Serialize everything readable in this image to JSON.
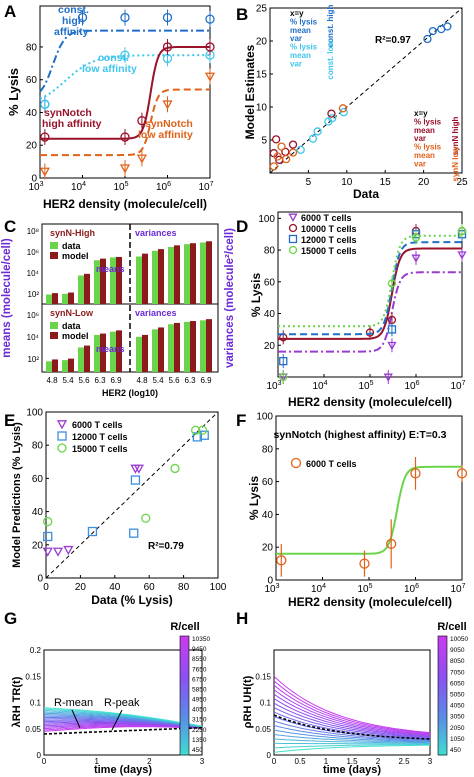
{
  "chart_data": [
    {
      "panel": "A",
      "type": "line",
      "xlabel": "HER2  density (molecule/cell)",
      "ylabel": "% Lysis",
      "xscale": "log",
      "xlim": [
        1000,
        10000000
      ],
      "ylim": [
        0,
        100
      ],
      "xticks": [
        1000,
        10000,
        100000,
        1000000,
        10000000
      ],
      "yticks": [
        0,
        20,
        40,
        60,
        80
      ],
      "series": [
        {
          "name": "const. high affinity",
          "color": "#1f6fc8",
          "dash": "8 3 2 3",
          "curve": {
            "low": 48,
            "high": 90,
            "ec50": 2000,
            "n": 3
          },
          "points": [
            [
              1300,
              45
            ],
            [
              10000,
              98
            ],
            [
              100000,
              98
            ],
            [
              1000000,
              98
            ],
            [
              10000000,
              97
            ]
          ]
        },
        {
          "name": "const. low affinity",
          "color": "#3fc6ec",
          "dash": "2 3",
          "curve": {
            "low": 44,
            "high": 75,
            "ec50": 4000,
            "n": 1.3
          },
          "points": [
            [
              1300,
              45
            ],
            [
              100000,
              75
            ],
            [
              1000000,
              73
            ],
            [
              10000000,
              75
            ]
          ]
        },
        {
          "name": "synNotch high affinity",
          "color": "#98122a",
          "dash": "",
          "curve": {
            "low": 24,
            "high": 80,
            "ec50": 400000,
            "n": 5
          },
          "points": [
            [
              1300,
              25
            ],
            [
              100000,
              25
            ],
            [
              250000,
              35
            ],
            [
              1000000,
              80
            ],
            [
              10000000,
              80
            ]
          ]
        },
        {
          "name": "synNotch low affinity",
          "color": "#e0621a",
          "dash": "7 4",
          "curve": {
            "low": 14,
            "high": 54,
            "ec50": 400000,
            "n": 5
          },
          "points": [
            [
              1300,
              4
            ],
            [
              100000,
              6
            ],
            [
              250000,
              12
            ],
            [
              1000000,
              45
            ],
            [
              10000000,
              62
            ]
          ]
        }
      ],
      "labels": {
        "const_high": [
          "const.",
          "high",
          "affinity"
        ],
        "const_low": [
          "const.",
          "low affinity"
        ],
        "syn_high": [
          "synNotch",
          "high affinity"
        ],
        "syn_low": [
          "synNotch",
          "low affinity"
        ]
      }
    },
    {
      "panel": "B",
      "type": "scatter",
      "xlabel": "Data",
      "ylabel": "Model Estimates",
      "xlim": [
        0,
        25
      ],
      "ylim": [
        0,
        25
      ],
      "xticks": [
        5,
        10,
        15,
        20,
        25
      ],
      "yticks": [
        5,
        10,
        15,
        20,
        25
      ],
      "annotation": "R²=0.97",
      "legend_top": [
        "x=y",
        "% lysis",
        "mean",
        "var",
        "% lysis",
        "mean",
        "var"
      ],
      "legend_top_groups": [
        "const. high",
        "const. low"
      ],
      "legend_bottom": [
        "x=y",
        "% lysis",
        "mean",
        "var",
        "% lysis",
        "mean",
        "var"
      ],
      "legend_bottom_groups": [
        "synN high",
        "synN low"
      ],
      "points": {
        "const_high": [
          [
            20.5,
            20.3
          ],
          [
            21.2,
            21.5
          ],
          [
            22.3,
            21.8
          ],
          [
            23.1,
            22.2
          ]
        ],
        "const_low": [
          [
            4,
            3.5
          ],
          [
            5.6,
            5.2
          ],
          [
            6.2,
            6.3
          ],
          [
            7.6,
            7.8
          ],
          [
            8.1,
            8.3
          ],
          [
            9.6,
            9.2
          ]
        ],
        "synN_high": [
          [
            0.5,
            3
          ],
          [
            1.2,
            2
          ],
          [
            2,
            3.2
          ],
          [
            3,
            4.3
          ],
          [
            0.8,
            5.1
          ],
          [
            8,
            9
          ]
        ],
        "synN_low": [
          [
            0.5,
            1
          ],
          [
            1,
            2.5
          ],
          [
            2.1,
            2.1
          ],
          [
            3,
            3.1
          ],
          [
            1.5,
            4
          ],
          [
            9.5,
            9.8
          ]
        ]
      }
    },
    {
      "panel": "C",
      "type": "bar",
      "xlabel": "HER2 (log10)",
      "categories": [
        "4.8",
        "5.4",
        "5.6",
        "6.3",
        "6.9"
      ],
      "ylabel_left": "means (molecule/cell)",
      "ylabel_right": "variances (molecule²/cell)",
      "tick_labels_top": [
        "10⁸",
        "10⁶",
        "10⁴",
        "10²"
      ],
      "tick_labels_bottom": [
        "10⁶",
        "10⁴",
        "10²"
      ],
      "subpanels": [
        {
          "title": "synN-High",
          "data_label": "data",
          "model_label": "model",
          "means_label": "means",
          "variances_label": "variances",
          "means_data": [
            100,
            120,
            10000,
            400000,
            800000
          ],
          "means_model": [
            140,
            160,
            15000,
            600000,
            900000
          ],
          "var_data": [
            1000000,
            4000000,
            10000000,
            20000000,
            30000000
          ],
          "var_model": [
            2000000,
            6000000,
            15000000,
            25000000,
            40000000
          ]
        },
        {
          "title": "synN-Low",
          "data_label": "data",
          "model_label": "model",
          "means_label": "means",
          "variances_label": "variances",
          "means_data": [
            100,
            130,
            2000,
            30000,
            60000
          ],
          "means_model": [
            150,
            180,
            3000,
            40000,
            80000
          ],
          "var_data": [
            20000,
            100000,
            300000,
            500000,
            700000
          ],
          "var_model": [
            30000,
            150000,
            400000,
            600000,
            900000
          ]
        }
      ]
    },
    {
      "panel": "D",
      "type": "line",
      "xlabel": "HER2 density (molecule/cell)",
      "ylabel": "% Lysis",
      "xscale": "log",
      "xlim": [
        1000,
        10000000
      ],
      "ylim": [
        0,
        100
      ],
      "yticks": [
        20,
        40,
        60,
        80,
        100
      ],
      "series": [
        {
          "name": "6000 T cells",
          "color": "#9a3bd0",
          "dash": "8 3 2 3",
          "marker": "tri",
          "curve": {
            "low": 16,
            "high": 66,
            "ec50": 300000,
            "n": 5
          },
          "points": [
            [
              1300,
              0
            ],
            [
              250000,
              0
            ],
            [
              300000,
              20
            ],
            [
              1000000,
              75
            ],
            [
              10000000,
              77
            ]
          ]
        },
        {
          "name": "10000 T cells",
          "color": "#98122a",
          "dash": "",
          "marker": "circle",
          "curve": {
            "low": 24,
            "high": 81,
            "ec50": 300000,
            "n": 5
          },
          "points": [
            [
              1300,
              25
            ],
            [
              100000,
              28
            ],
            [
              300000,
              36
            ],
            [
              1000000,
              92
            ],
            [
              10000000,
              92
            ]
          ]
        },
        {
          "name": "12000 T cells",
          "color": "#1f6fc8",
          "dash": "7 4",
          "marker": "square",
          "curve": {
            "low": 27,
            "high": 85,
            "ec50": 300000,
            "n": 5
          },
          "points": [
            [
              1300,
              10
            ],
            [
              300000,
              30
            ],
            [
              1000000,
              90
            ],
            [
              10000000,
              90
            ]
          ]
        },
        {
          "name": "15000 T cells",
          "color": "#6ad44a",
          "dash": "2 3",
          "marker": "circle",
          "curve": {
            "low": 32,
            "high": 89,
            "ec50": 300000,
            "n": 5
          },
          "points": [
            [
              1300,
              0
            ],
            [
              300000,
              59
            ],
            [
              1000000,
              88
            ],
            [
              10000000,
              92
            ]
          ]
        }
      ]
    },
    {
      "panel": "E",
      "type": "scatter",
      "xlabel": "Data (% Lysis)",
      "ylabel": "Model Predictions (% Lysis)",
      "xlim": [
        0,
        100
      ],
      "ylim": [
        0,
        100
      ],
      "xticks": [
        0,
        20,
        40,
        60,
        80,
        100
      ],
      "yticks": [
        0,
        20,
        40,
        60,
        80,
        100
      ],
      "annotation": "R²=0.79",
      "series": [
        {
          "name": "6000 T cells",
          "color": "#9a3bd0",
          "marker": "tri",
          "points": [
            [
              1,
              16
            ],
            [
              7,
              16
            ],
            [
              13,
              17
            ],
            [
              52,
              66
            ],
            [
              54,
              66
            ]
          ]
        },
        {
          "name": "12000 T cells",
          "color": "#3a8ee0",
          "marker": "square",
          "points": [
            [
              1,
              25
            ],
            [
              27,
              28
            ],
            [
              51,
              27
            ],
            [
              52,
              59
            ],
            [
              88,
              85
            ],
            [
              92,
              86
            ]
          ]
        },
        {
          "name": "15000 T cells",
          "color": "#6ad44a",
          "marker": "circle",
          "points": [
            [
              1,
              34
            ],
            [
              58,
              36
            ],
            [
              75,
              66
            ],
            [
              87,
              89
            ],
            [
              91,
              89
            ]
          ]
        }
      ]
    },
    {
      "panel": "F",
      "type": "line",
      "title": "synNotch (highest affinity) E:T=0.3",
      "xlabel": "HER2 density (molecule/cell)",
      "ylabel": "% Lysis",
      "xscale": "log",
      "xlim": [
        1000,
        10000000
      ],
      "ylim": [
        0,
        100
      ],
      "yticks": [
        0,
        20,
        40,
        60,
        80,
        100
      ],
      "series": [
        {
          "name": "6000 T cells",
          "color": "#e0621a",
          "curve_color": "#6ad44a",
          "curve": {
            "low": 16,
            "high": 69,
            "ec50": 400000,
            "n": 5
          },
          "points": [
            [
              1300,
              12
            ],
            [
              80000,
              10
            ],
            [
              300000,
              22
            ],
            [
              1000000,
              65
            ],
            [
              10000000,
              65
            ]
          ],
          "errors": [
            10,
            8,
            15,
            10,
            5
          ]
        }
      ]
    },
    {
      "panel": "G",
      "type": "line",
      "xlabel": "time (days)",
      "ylabel": "λRH TR(t)",
      "xlim": [
        0,
        3
      ],
      "ylim": [
        0,
        0.2
      ],
      "yticks": [
        0,
        0.05,
        0.1,
        0.15,
        0.2
      ],
      "xticks": [
        0,
        1,
        2,
        3
      ],
      "colorbar_title": "R/cell",
      "colorbar_ticks": [
        "10350",
        "9450",
        "8550",
        "7650",
        "6750",
        "5850",
        "4950",
        "4050",
        "3150",
        "2250",
        "1350",
        "450"
      ],
      "annotations": [
        "R-mean",
        "R-peak"
      ],
      "n_curves": 18
    },
    {
      "panel": "H",
      "type": "line",
      "xlabel": "time (days)",
      "ylabel": "ρRH UH(t)",
      "xlim": [
        0,
        3
      ],
      "ylim": [
        0,
        0.2
      ],
      "yticks": [
        0,
        0.05,
        0.1,
        0.15
      ],
      "xticks": [
        0,
        0.5,
        1,
        1.5,
        2,
        2.5,
        3
      ],
      "colorbar_title": "R/cell",
      "colorbar_ticks": [
        "10050",
        "9050",
        "8050",
        "7050",
        "6050",
        "5050",
        "4050",
        "3050",
        "2050",
        "1050",
        "450"
      ],
      "n_curves": 18
    }
  ]
}
